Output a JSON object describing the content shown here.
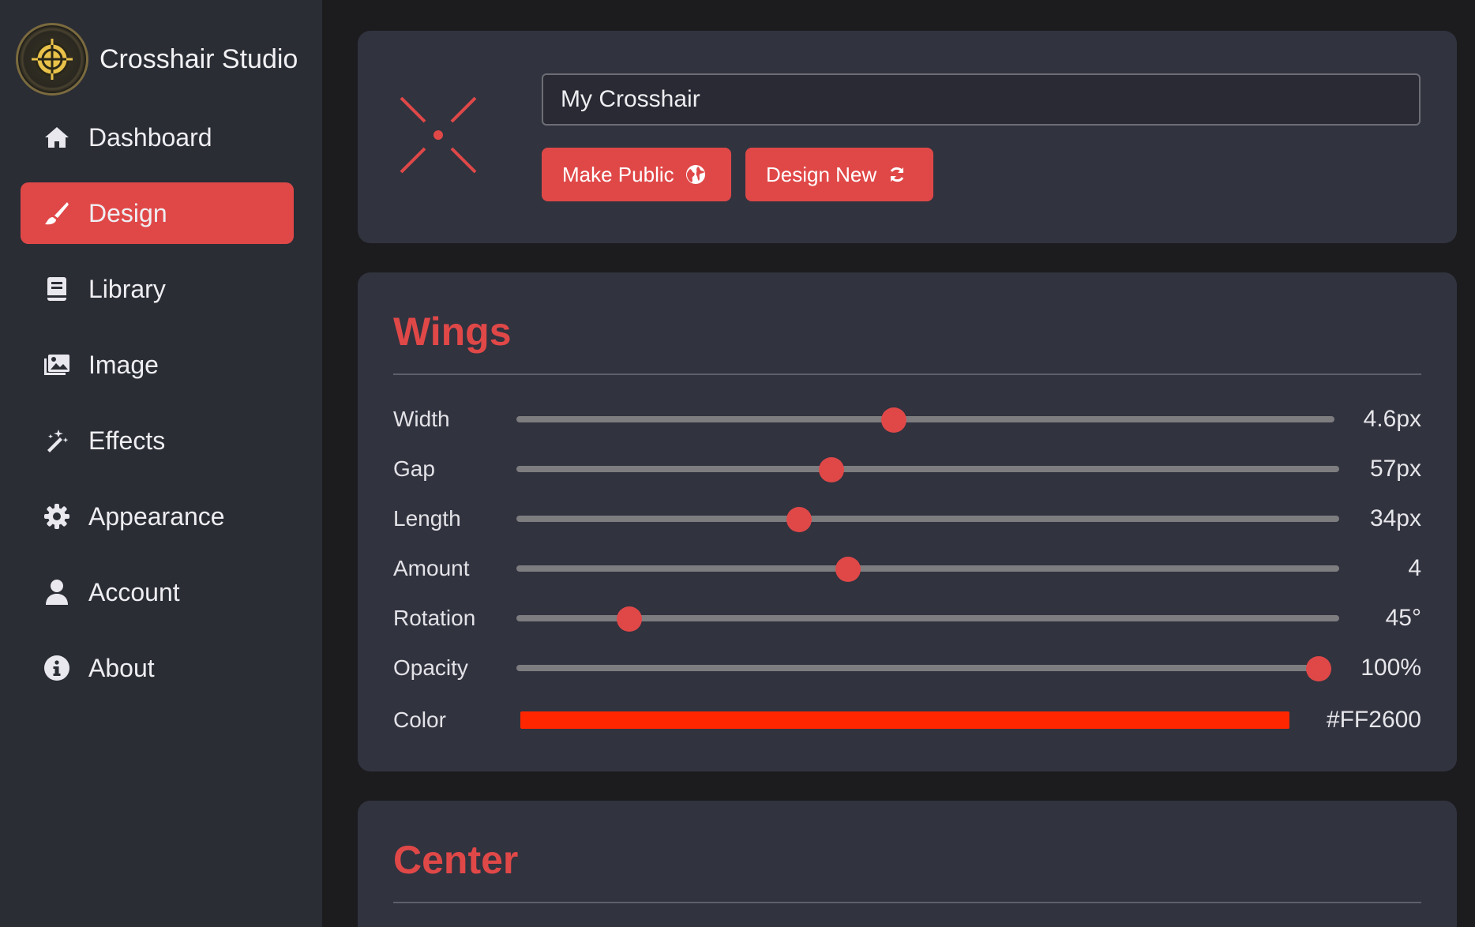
{
  "brand": {
    "title": "Crosshair Studio",
    "logo_icon": "crosshair-logo-icon"
  },
  "nav": {
    "items": [
      {
        "label": "Dashboard",
        "icon": "home-icon",
        "active": false
      },
      {
        "label": "Design",
        "icon": "brush-icon",
        "active": true
      },
      {
        "label": "Library",
        "icon": "book-icon",
        "active": false
      },
      {
        "label": "Image",
        "icon": "images-icon",
        "active": false
      },
      {
        "label": "Effects",
        "icon": "magic-wand-icon",
        "active": false
      },
      {
        "label": "Appearance",
        "icon": "gear-icon",
        "active": false
      },
      {
        "label": "Account",
        "icon": "user-icon",
        "active": false
      },
      {
        "label": "About",
        "icon": "info-icon",
        "active": false
      }
    ]
  },
  "header": {
    "crosshair_name": "My Crosshair",
    "make_public_label": "Make Public",
    "make_public_icon": "globe-icon",
    "design_new_label": "Design New",
    "design_new_icon": "refresh-icon"
  },
  "wings": {
    "title": "Wings",
    "sliders": [
      {
        "label": "Width",
        "value_text": "4.6px",
        "fraction": 0.461
      },
      {
        "label": "Gap",
        "value_text": "57px",
        "fraction": 0.383
      },
      {
        "label": "Length",
        "value_text": "34px",
        "fraction": 0.344
      },
      {
        "label": "Amount",
        "value_text": "4",
        "fraction": 0.403
      },
      {
        "label": "Rotation",
        "value_text": "45°",
        "fraction": 0.137
      },
      {
        "label": "Opacity",
        "value_text": "100%",
        "fraction": 1.0
      }
    ],
    "color": {
      "label": "Color",
      "value_text": "#FF2600",
      "hex": "#FF2600"
    }
  },
  "center": {
    "title": "Center"
  },
  "colors": {
    "accent": "#E04848",
    "sidebar_bg": "#2B2D35",
    "card_bg": "#31333F",
    "page_bg": "#1C1C1F"
  }
}
